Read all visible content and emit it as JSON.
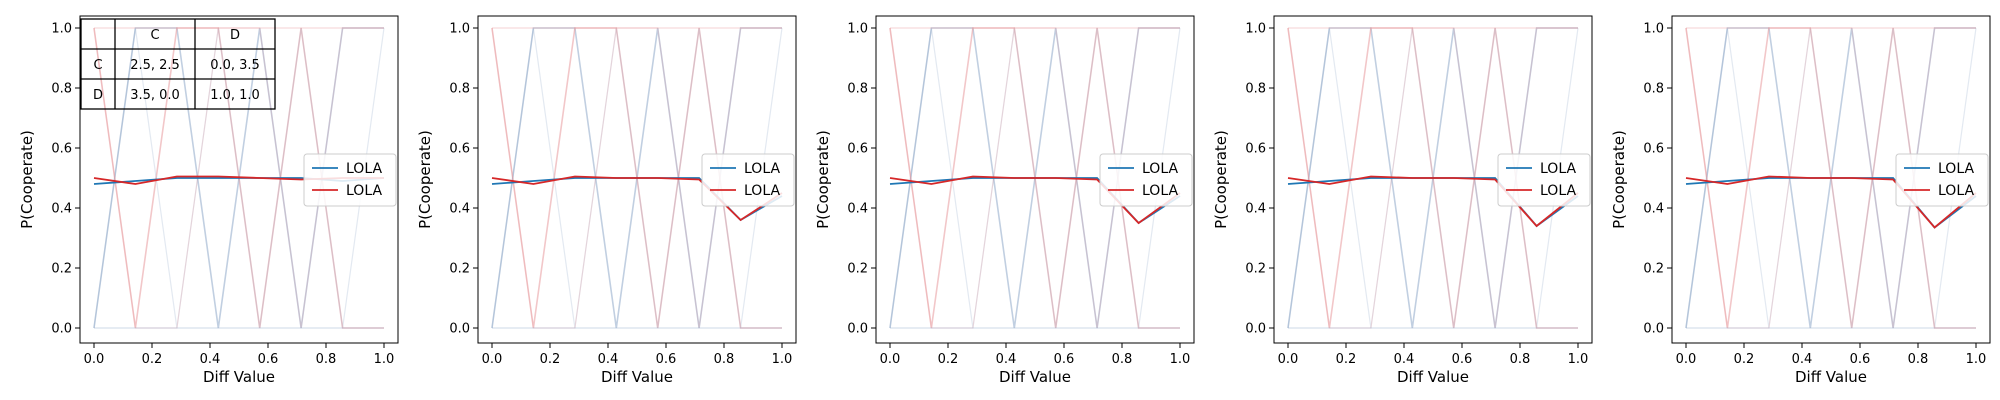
{
  "colors": {
    "blue": "#1f77b4",
    "red": "#d62728",
    "blue_faint": "#8ea7c9",
    "red_faint": "#e8999c",
    "axis": "#000000"
  },
  "chart_data": [
    {
      "type": "line",
      "xlabel": "Diff Value",
      "ylabel": "P(Cooperate)",
      "xlim": [
        0.0,
        1.0
      ],
      "ylim": [
        0.0,
        1.0
      ],
      "xticks": [
        "0.0",
        "0.2",
        "0.4",
        "0.6",
        "0.8",
        "1.0"
      ],
      "yticks": [
        "0.0",
        "0.2",
        "0.4",
        "0.6",
        "0.8",
        "1.0"
      ],
      "legend": {
        "placement": "center-right",
        "entries": [
          "LOLA",
          "LOLA"
        ]
      },
      "x": [
        0.0,
        0.1429,
        0.2857,
        0.4286,
        0.5714,
        0.7143,
        0.8571,
        1.0
      ],
      "series": [
        {
          "name": "LOLA",
          "color": "#1f77b4",
          "values": [
            0.48,
            0.49,
            0.5,
            0.5,
            0.5,
            0.5,
            0.49,
            0.5
          ]
        },
        {
          "name": "LOLA",
          "color": "#d62728",
          "values": [
            0.5,
            0.48,
            0.505,
            0.505,
            0.5,
            0.495,
            0.5,
            0.5
          ]
        }
      ],
      "payoff_table": {
        "headers": [
          "",
          "C",
          "D"
        ],
        "rows": [
          [
            "C",
            "2.5, 2.5",
            "0.0, 3.5"
          ],
          [
            "D",
            "3.5, 0.0",
            "1.0, 1.0"
          ]
        ]
      }
    },
    {
      "type": "line",
      "xlabel": "Diff Value",
      "ylabel": "P(Cooperate)",
      "xlim": [
        0.0,
        1.0
      ],
      "ylim": [
        0.0,
        1.0
      ],
      "xticks": [
        "0.0",
        "0.2",
        "0.4",
        "0.6",
        "0.8",
        "1.0"
      ],
      "yticks": [
        "0.0",
        "0.2",
        "0.4",
        "0.6",
        "0.8",
        "1.0"
      ],
      "legend": {
        "placement": "center-right",
        "entries": [
          "LOLA",
          "LOLA"
        ]
      },
      "x": [
        0.0,
        0.1429,
        0.2857,
        0.4286,
        0.5714,
        0.7143,
        0.8571,
        1.0
      ],
      "series": [
        {
          "name": "LOLA",
          "color": "#1f77b4",
          "values": [
            0.48,
            0.49,
            0.5,
            0.5,
            0.5,
            0.5,
            0.36,
            0.44
          ]
        },
        {
          "name": "LOLA",
          "color": "#d62728",
          "values": [
            0.5,
            0.48,
            0.505,
            0.5,
            0.5,
            0.495,
            0.36,
            0.45
          ]
        }
      ]
    },
    {
      "type": "line",
      "xlabel": "Diff Value",
      "ylabel": "P(Cooperate)",
      "xlim": [
        0.0,
        1.0
      ],
      "ylim": [
        0.0,
        1.0
      ],
      "xticks": [
        "0.0",
        "0.2",
        "0.4",
        "0.6",
        "0.8",
        "1.0"
      ],
      "yticks": [
        "0.0",
        "0.2",
        "0.4",
        "0.6",
        "0.8",
        "1.0"
      ],
      "legend": {
        "placement": "center-right",
        "entries": [
          "LOLA",
          "LOLA"
        ]
      },
      "x": [
        0.0,
        0.1429,
        0.2857,
        0.4286,
        0.5714,
        0.7143,
        0.8571,
        1.0
      ],
      "series": [
        {
          "name": "LOLA",
          "color": "#1f77b4",
          "values": [
            0.48,
            0.49,
            0.5,
            0.5,
            0.5,
            0.5,
            0.35,
            0.44
          ]
        },
        {
          "name": "LOLA",
          "color": "#d62728",
          "values": [
            0.5,
            0.48,
            0.505,
            0.5,
            0.5,
            0.495,
            0.35,
            0.45
          ]
        }
      ]
    },
    {
      "type": "line",
      "xlabel": "Diff Value",
      "ylabel": "P(Cooperate)",
      "xlim": [
        0.0,
        1.0
      ],
      "ylim": [
        0.0,
        1.0
      ],
      "xticks": [
        "0.0",
        "0.2",
        "0.4",
        "0.6",
        "0.8",
        "1.0"
      ],
      "yticks": [
        "0.0",
        "0.2",
        "0.4",
        "0.6",
        "0.8",
        "1.0"
      ],
      "legend": {
        "placement": "center-right",
        "entries": [
          "LOLA",
          "LOLA"
        ]
      },
      "x": [
        0.0,
        0.1429,
        0.2857,
        0.4286,
        0.5714,
        0.7143,
        0.8571,
        1.0
      ],
      "series": [
        {
          "name": "LOLA",
          "color": "#1f77b4",
          "values": [
            0.48,
            0.49,
            0.5,
            0.5,
            0.5,
            0.5,
            0.34,
            0.44
          ]
        },
        {
          "name": "LOLA",
          "color": "#d62728",
          "values": [
            0.5,
            0.48,
            0.505,
            0.5,
            0.5,
            0.495,
            0.34,
            0.45
          ]
        }
      ]
    },
    {
      "type": "line",
      "xlabel": "Diff Value",
      "ylabel": "P(Cooperate)",
      "xlim": [
        0.0,
        1.0
      ],
      "ylim": [
        0.0,
        1.0
      ],
      "xticks": [
        "0.0",
        "0.2",
        "0.4",
        "0.6",
        "0.8",
        "1.0"
      ],
      "yticks": [
        "0.0",
        "0.2",
        "0.4",
        "0.6",
        "0.8",
        "1.0"
      ],
      "legend": {
        "placement": "center-right",
        "entries": [
          "LOLA",
          "LOLA"
        ]
      },
      "x": [
        0.0,
        0.1429,
        0.2857,
        0.4286,
        0.5714,
        0.7143,
        0.8571,
        1.0
      ],
      "series": [
        {
          "name": "LOLA",
          "color": "#1f77b4",
          "values": [
            0.48,
            0.49,
            0.5,
            0.5,
            0.5,
            0.5,
            0.335,
            0.44
          ]
        },
        {
          "name": "LOLA",
          "color": "#d62728",
          "values": [
            0.5,
            0.48,
            0.505,
            0.5,
            0.5,
            0.495,
            0.335,
            0.45
          ]
        }
      ]
    }
  ]
}
